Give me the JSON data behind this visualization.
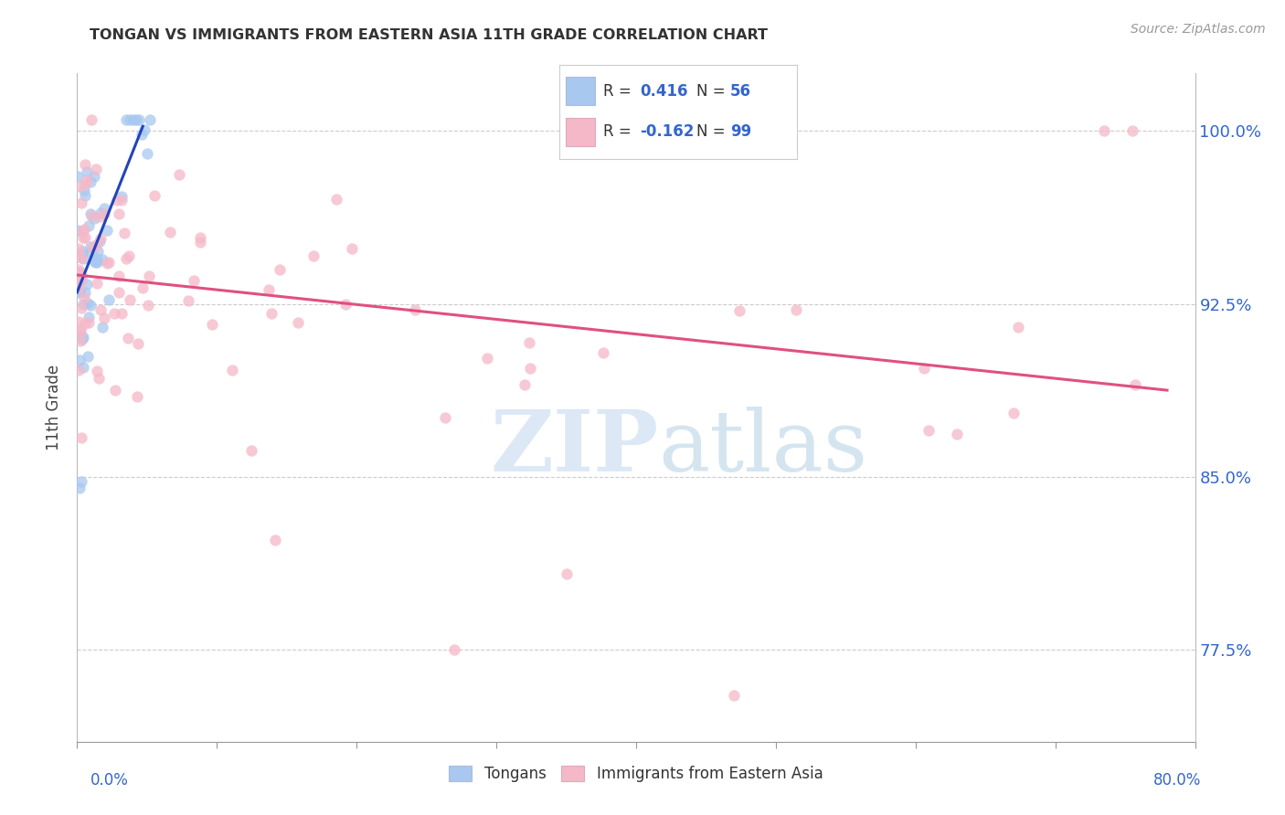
{
  "title": "TONGAN VS IMMIGRANTS FROM EASTERN ASIA 11TH GRADE CORRELATION CHART",
  "source": "Source: ZipAtlas.com",
  "ylabel": "11th Grade",
  "yaxis_ticks": [
    0.775,
    0.85,
    0.925,
    1.0
  ],
  "yaxis_labels": [
    "77.5%",
    "85.0%",
    "92.5%",
    "100.0%"
  ],
  "xlim": [
    0.0,
    0.8
  ],
  "ylim": [
    0.735,
    1.025
  ],
  "blue_color": "#A8C8F0",
  "pink_color": "#F5B8C8",
  "blue_line_color": "#2244BB",
  "pink_line_color": "#E05080",
  "watermark_zip": "ZIP",
  "watermark_atlas": "atlas",
  "blue_trend_x0": 0.0,
  "blue_trend_y0": 0.93,
  "blue_trend_x1": 0.047,
  "blue_trend_y1": 1.002,
  "pink_trend_x0": 0.0,
  "pink_trend_y0": 0.9375,
  "pink_trend_x1": 0.78,
  "pink_trend_y1": 0.8875
}
